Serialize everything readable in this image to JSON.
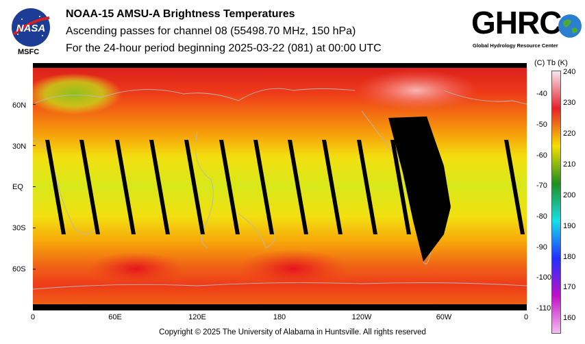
{
  "header": {
    "title": "NOAA-15 AMSU-A Brightness Temperatures",
    "subtitle1": "Ascending passes for channel 08 (55498.70 MHz, 150 hPa)",
    "subtitle2": "For the 24-hour period beginning 2025-03-22 (081) at 00:00 UTC"
  },
  "logos": {
    "nasa_label": "MSFC",
    "nasa_wordmark": "NASA",
    "ghrc_wordmark": "GHRC",
    "ghrc_subtitle": "Global Hydrology Resource Center"
  },
  "map": {
    "lat_labels": [
      "60N",
      "30N",
      "EQ",
      "30S",
      "60S"
    ],
    "lon_labels": [
      "0",
      "60E",
      "120E",
      "180",
      "120W",
      "60W",
      "0"
    ],
    "lat_values": [
      60,
      30,
      0,
      -30,
      -60
    ],
    "lon_values": [
      0,
      60,
      120,
      180,
      240,
      300,
      360
    ],
    "lat_range": [
      -90,
      90
    ],
    "lon_range": [
      0,
      360
    ]
  },
  "colorbar": {
    "units_label": "(C)  Tb  (K)",
    "celsius_ticks": [
      "-40",
      "-50",
      "-60",
      "-70",
      "-80",
      "-90",
      "-100",
      "-110"
    ],
    "celsius_values": [
      -40,
      -50,
      -60,
      -70,
      -80,
      -90,
      -100,
      -110
    ],
    "kelvin_ticks": [
      "240",
      "230",
      "220",
      "210",
      "200",
      "190",
      "180",
      "170",
      "160"
    ],
    "kelvin_values": [
      240,
      230,
      220,
      210,
      200,
      190,
      180,
      170,
      160
    ],
    "range_k": [
      155,
      240
    ],
    "stops": [
      "#f6e8f2",
      "#e8202a",
      "#f7df00",
      "#1f8f1e",
      "#16e0e8",
      "#2030ff",
      "#c010c8",
      "#f4c0f0"
    ]
  },
  "footer": {
    "copyright": "Copyright © 2025 The University of Alabama in Huntsville.  All rights reserved"
  }
}
